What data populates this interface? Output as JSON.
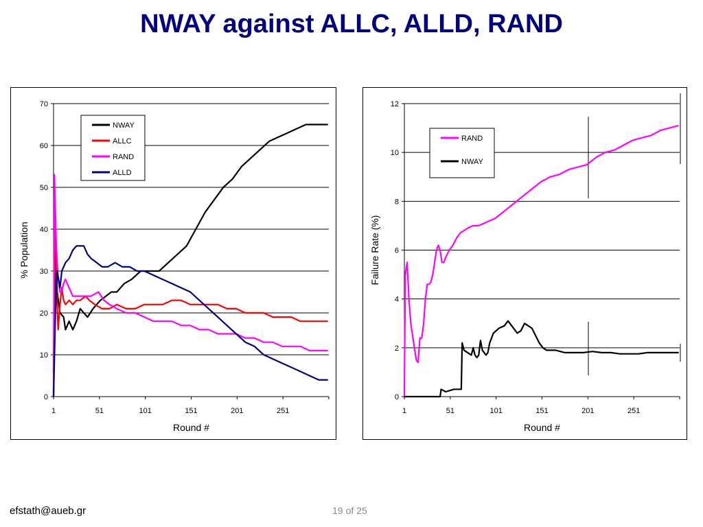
{
  "slide": {
    "title": "NWAY against ALLC, ALLD, RAND",
    "footer_email": "efstath@aueb.gr",
    "page_current": "19",
    "page_of": "of",
    "page_total": "25"
  },
  "chart_data": [
    {
      "type": "line",
      "xlabel": "Round #",
      "ylabel": "% Population",
      "xlim": [
        1,
        301
      ],
      "ylim": [
        0,
        70
      ],
      "x_ticks": [
        "1",
        "51",
        "101",
        "151",
        "201",
        "251"
      ],
      "y_ticks": [
        "0",
        "10",
        "20",
        "30",
        "40",
        "50",
        "60",
        "70"
      ],
      "grid": "horizontal",
      "legend": "top-left",
      "series": [
        {
          "name": "NWAY",
          "color": "#000000",
          "points": [
            [
              1,
              0
            ],
            [
              3,
              34
            ],
            [
              5,
              25
            ],
            [
              8,
              20
            ],
            [
              12,
              19
            ],
            [
              14,
              16
            ],
            [
              18,
              18
            ],
            [
              22,
              16
            ],
            [
              26,
              18
            ],
            [
              30,
              21
            ],
            [
              34,
              20
            ],
            [
              38,
              19
            ],
            [
              44,
              21
            ],
            [
              52,
              23
            ],
            [
              58,
              24
            ],
            [
              64,
              25
            ],
            [
              70,
              25
            ],
            [
              78,
              27
            ],
            [
              86,
              28
            ],
            [
              96,
              30
            ],
            [
              106,
              30
            ],
            [
              116,
              30
            ],
            [
              126,
              32
            ],
            [
              136,
              34
            ],
            [
              146,
              36
            ],
            [
              156,
              40
            ],
            [
              166,
              44
            ],
            [
              176,
              47
            ],
            [
              186,
              50
            ],
            [
              196,
              52
            ],
            [
              206,
              55
            ],
            [
              216,
              57
            ],
            [
              226,
              59
            ],
            [
              236,
              61
            ],
            [
              246,
              62
            ],
            [
              256,
              63
            ],
            [
              266,
              64
            ],
            [
              276,
              65
            ],
            [
              280,
              65
            ],
            [
              286,
              65
            ],
            [
              300,
              65
            ]
          ]
        },
        {
          "name": "ALLC",
          "color": "#ff0000",
          "points": [
            [
              1,
              0
            ],
            [
              2,
              48
            ],
            [
              4,
              28
            ],
            [
              6,
              16
            ],
            [
              8,
              22
            ],
            [
              10,
              26
            ],
            [
              12,
              23
            ],
            [
              14,
              22
            ],
            [
              18,
              23
            ],
            [
              22,
              22
            ],
            [
              26,
              23
            ],
            [
              30,
              23
            ],
            [
              36,
              24
            ],
            [
              40,
              23
            ],
            [
              46,
              22
            ],
            [
              54,
              21
            ],
            [
              62,
              21
            ],
            [
              70,
              22
            ],
            [
              80,
              21
            ],
            [
              90,
              21
            ],
            [
              100,
              22
            ],
            [
              110,
              22
            ],
            [
              120,
              22
            ],
            [
              130,
              23
            ],
            [
              140,
              23
            ],
            [
              150,
              22
            ],
            [
              160,
              22
            ],
            [
              170,
              22
            ],
            [
              180,
              22
            ],
            [
              190,
              21
            ],
            [
              200,
              21
            ],
            [
              210,
              20
            ],
            [
              220,
              20
            ],
            [
              230,
              20
            ],
            [
              240,
              19
            ],
            [
              250,
              19
            ],
            [
              260,
              19
            ],
            [
              270,
              18
            ],
            [
              280,
              18
            ],
            [
              290,
              18
            ],
            [
              300,
              18
            ]
          ]
        },
        {
          "name": "RAND",
          "color": "#ff00ff",
          "points": [
            [
              1,
              0
            ],
            [
              2,
              53
            ],
            [
              4,
              36
            ],
            [
              6,
              28
            ],
            [
              8,
              25
            ],
            [
              10,
              25
            ],
            [
              12,
              27
            ],
            [
              14,
              28
            ],
            [
              18,
              26
            ],
            [
              22,
              24
            ],
            [
              26,
              24
            ],
            [
              30,
              24
            ],
            [
              36,
              24
            ],
            [
              42,
              24
            ],
            [
              50,
              25
            ],
            [
              56,
              23
            ],
            [
              62,
              22
            ],
            [
              70,
              21
            ],
            [
              80,
              20
            ],
            [
              90,
              20
            ],
            [
              100,
              19
            ],
            [
              110,
              18
            ],
            [
              120,
              18
            ],
            [
              130,
              18
            ],
            [
              140,
              17
            ],
            [
              150,
              17
            ],
            [
              160,
              16
            ],
            [
              170,
              16
            ],
            [
              180,
              15
            ],
            [
              190,
              15
            ],
            [
              200,
              15
            ],
            [
              210,
              14
            ],
            [
              220,
              14
            ],
            [
              230,
              13
            ],
            [
              240,
              13
            ],
            [
              250,
              12
            ],
            [
              260,
              12
            ],
            [
              270,
              12
            ],
            [
              280,
              11
            ],
            [
              290,
              11
            ],
            [
              300,
              11
            ]
          ]
        },
        {
          "name": "ALLD",
          "color": "#000080",
          "points": [
            [
              1,
              0
            ],
            [
              3,
              20
            ],
            [
              5,
              30
            ],
            [
              8,
              26
            ],
            [
              10,
              30
            ],
            [
              14,
              32
            ],
            [
              18,
              33
            ],
            [
              22,
              35
            ],
            [
              26,
              36
            ],
            [
              30,
              36
            ],
            [
              34,
              36
            ],
            [
              38,
              34
            ],
            [
              42,
              33
            ],
            [
              48,
              32
            ],
            [
              54,
              31
            ],
            [
              60,
              31
            ],
            [
              68,
              32
            ],
            [
              76,
              31
            ],
            [
              84,
              31
            ],
            [
              92,
              30
            ],
            [
              100,
              30
            ],
            [
              110,
              29
            ],
            [
              120,
              28
            ],
            [
              130,
              27
            ],
            [
              140,
              26
            ],
            [
              150,
              25
            ],
            [
              160,
              23
            ],
            [
              170,
              21
            ],
            [
              180,
              19
            ],
            [
              190,
              17
            ],
            [
              200,
              15
            ],
            [
              210,
              13
            ],
            [
              220,
              12
            ],
            [
              230,
              10
            ],
            [
              240,
              9
            ],
            [
              250,
              8
            ],
            [
              260,
              7
            ],
            [
              270,
              6
            ],
            [
              280,
              5
            ],
            [
              290,
              4
            ],
            [
              300,
              4
            ]
          ]
        }
      ]
    },
    {
      "type": "line",
      "xlabel": "Round #",
      "ylabel": "Failure Rate (%)",
      "xlim": [
        1,
        301
      ],
      "ylim": [
        0,
        12
      ],
      "x_ticks": [
        "1",
        "51",
        "101",
        "151",
        "201",
        "251"
      ],
      "y_ticks": [
        "0",
        "2",
        "4",
        "6",
        "8",
        "10",
        "12"
      ],
      "grid": "horizontal",
      "legend": "top-left",
      "series": [
        {
          "name": "RAND",
          "color": "#ff00ff",
          "points": [
            [
              1,
              0
            ],
            [
              2,
              5
            ],
            [
              4,
              5.5
            ],
            [
              6,
              4
            ],
            [
              8,
              3
            ],
            [
              10,
              2.5
            ],
            [
              12,
              2
            ],
            [
              14,
              1.5
            ],
            [
              16,
              1.4
            ],
            [
              18,
              2.4
            ],
            [
              20,
              2.4
            ],
            [
              22,
              3
            ],
            [
              24,
              4
            ],
            [
              26,
              4.6
            ],
            [
              28,
              4.6
            ],
            [
              30,
              4.7
            ],
            [
              32,
              5
            ],
            [
              34,
              5.5
            ],
            [
              36,
              6
            ],
            [
              38,
              6.2
            ],
            [
              40,
              6
            ],
            [
              42,
              5.5
            ],
            [
              44,
              5.5
            ],
            [
              46,
              5.7
            ],
            [
              50,
              6
            ],
            [
              54,
              6.2
            ],
            [
              58,
              6.5
            ],
            [
              62,
              6.7
            ],
            [
              66,
              6.8
            ],
            [
              70,
              6.9
            ],
            [
              76,
              7
            ],
            [
              82,
              7
            ],
            [
              88,
              7.1
            ],
            [
              94,
              7.2
            ],
            [
              100,
              7.3
            ],
            [
              110,
              7.6
            ],
            [
              120,
              7.9
            ],
            [
              130,
              8.2
            ],
            [
              140,
              8.5
            ],
            [
              150,
              8.8
            ],
            [
              160,
              9
            ],
            [
              170,
              9.1
            ],
            [
              180,
              9.3
            ],
            [
              190,
              9.4
            ],
            [
              200,
              9.5
            ],
            [
              210,
              9.8
            ],
            [
              220,
              10
            ],
            [
              230,
              10.1
            ],
            [
              240,
              10.3
            ],
            [
              250,
              10.5
            ],
            [
              260,
              10.6
            ],
            [
              270,
              10.7
            ],
            [
              280,
              10.9
            ],
            [
              290,
              11
            ],
            [
              300,
              11.1
            ]
          ]
        },
        {
          "name": "NWAY",
          "color": "#000000",
          "points": [
            [
              1,
              0
            ],
            [
              40,
              0
            ],
            [
              41,
              0.3
            ],
            [
              46,
              0.2
            ],
            [
              55,
              0.3
            ],
            [
              62,
              0.3
            ],
            [
              63,
              0.3
            ],
            [
              64,
              2.2
            ],
            [
              66,
              1.9
            ],
            [
              70,
              1.8
            ],
            [
              74,
              1.7
            ],
            [
              76,
              2
            ],
            [
              78,
              1.7
            ],
            [
              80,
              1.6
            ],
            [
              82,
              1.7
            ],
            [
              84,
              2.3
            ],
            [
              86,
              1.9
            ],
            [
              90,
              1.7
            ],
            [
              92,
              1.8
            ],
            [
              94,
              2.2
            ],
            [
              98,
              2.6
            ],
            [
              104,
              2.8
            ],
            [
              110,
              2.9
            ],
            [
              114,
              3.1
            ],
            [
              120,
              2.8
            ],
            [
              124,
              2.6
            ],
            [
              128,
              2.7
            ],
            [
              132,
              3
            ],
            [
              136,
              2.9
            ],
            [
              140,
              2.8
            ],
            [
              144,
              2.5
            ],
            [
              148,
              2.2
            ],
            [
              152,
              2
            ],
            [
              156,
              1.9
            ],
            [
              166,
              1.9
            ],
            [
              176,
              1.8
            ],
            [
              186,
              1.8
            ],
            [
              196,
              1.8
            ],
            [
              206,
              1.85
            ],
            [
              216,
              1.8
            ],
            [
              226,
              1.8
            ],
            [
              236,
              1.75
            ],
            [
              246,
              1.75
            ],
            [
              256,
              1.75
            ],
            [
              266,
              1.8
            ],
            [
              276,
              1.8
            ],
            [
              286,
              1.8
            ],
            [
              300,
              1.8
            ]
          ]
        }
      ]
    }
  ]
}
